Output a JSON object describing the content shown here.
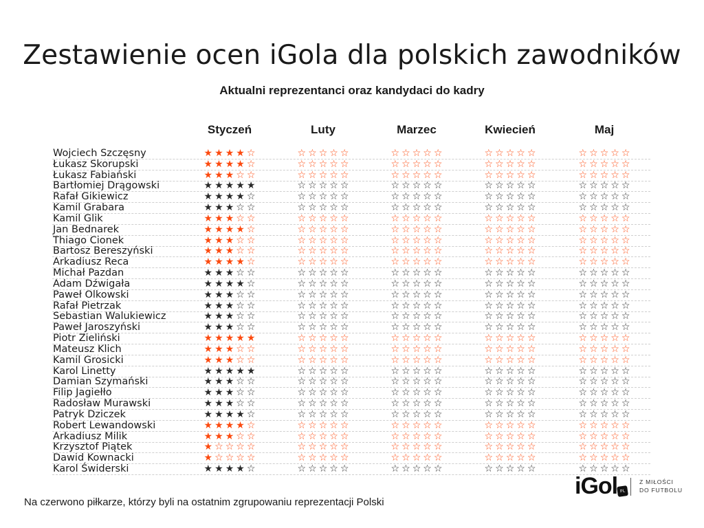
{
  "chart_data": {
    "type": "table",
    "title": "Zestawienie ocen iGola dla polskich zawodników",
    "subtitle": "Aktualni reprezentanci oraz kandydaci do kadry",
    "months": [
      "Styczeń",
      "Luty",
      "Marzec",
      "Kwiecień",
      "Maj"
    ],
    "max_stars": 5,
    "colors": {
      "highlighted": "#fc4a0f",
      "regular": "#2a2a2a"
    },
    "players": [
      {
        "name": "Wojciech Szczęsny",
        "highlighted": true,
        "ratings": [
          4,
          0,
          0,
          0,
          0
        ]
      },
      {
        "name": "Łukasz Skorupski",
        "highlighted": true,
        "ratings": [
          4,
          0,
          0,
          0,
          0
        ]
      },
      {
        "name": "Łukasz Fabiański",
        "highlighted": true,
        "ratings": [
          3,
          0,
          0,
          0,
          0
        ]
      },
      {
        "name": "Bartłomiej Drągowski",
        "highlighted": false,
        "ratings": [
          5,
          0,
          0,
          0,
          0
        ]
      },
      {
        "name": "Rafał Gikiewicz",
        "highlighted": false,
        "ratings": [
          4,
          0,
          0,
          0,
          0
        ]
      },
      {
        "name": "Kamil Grabara",
        "highlighted": false,
        "ratings": [
          3,
          0,
          0,
          0,
          0
        ]
      },
      {
        "name": "Kamil Glik",
        "highlighted": true,
        "ratings": [
          3,
          0,
          0,
          0,
          0
        ]
      },
      {
        "name": "Jan Bednarek",
        "highlighted": true,
        "ratings": [
          4,
          0,
          0,
          0,
          0
        ]
      },
      {
        "name": "Thiago Cionek",
        "highlighted": true,
        "ratings": [
          3,
          0,
          0,
          0,
          0
        ]
      },
      {
        "name": "Bartosz Bereszyński",
        "highlighted": true,
        "ratings": [
          3,
          0,
          0,
          0,
          0
        ]
      },
      {
        "name": "Arkadiusz Reca",
        "highlighted": true,
        "ratings": [
          4,
          0,
          0,
          0,
          0
        ]
      },
      {
        "name": "Michał Pazdan",
        "highlighted": false,
        "ratings": [
          3,
          0,
          0,
          0,
          0
        ]
      },
      {
        "name": "Adam Dźwigała",
        "highlighted": false,
        "ratings": [
          4,
          0,
          0,
          0,
          0
        ]
      },
      {
        "name": "Paweł Olkowski",
        "highlighted": false,
        "ratings": [
          3,
          0,
          0,
          0,
          0
        ]
      },
      {
        "name": "Rafał Pietrzak",
        "highlighted": false,
        "ratings": [
          3,
          0,
          0,
          0,
          0
        ]
      },
      {
        "name": "Sebastian Walukiewicz",
        "highlighted": false,
        "ratings": [
          3,
          0,
          0,
          0,
          0
        ]
      },
      {
        "name": "Paweł Jaroszyński",
        "highlighted": false,
        "ratings": [
          3,
          0,
          0,
          0,
          0
        ]
      },
      {
        "name": "Piotr Zieliński",
        "highlighted": true,
        "ratings": [
          5,
          0,
          0,
          0,
          0
        ]
      },
      {
        "name": "Mateusz Klich",
        "highlighted": true,
        "ratings": [
          3,
          0,
          0,
          0,
          0
        ]
      },
      {
        "name": "Kamil Grosicki",
        "highlighted": true,
        "ratings": [
          3,
          0,
          0,
          0,
          0
        ]
      },
      {
        "name": "Karol Linetty",
        "highlighted": false,
        "ratings": [
          5,
          0,
          0,
          0,
          0
        ]
      },
      {
        "name": "Damian Szymański",
        "highlighted": false,
        "ratings": [
          3,
          0,
          0,
          0,
          0
        ]
      },
      {
        "name": "Filip Jagiełło",
        "highlighted": false,
        "ratings": [
          3,
          0,
          0,
          0,
          0
        ]
      },
      {
        "name": "Radosław Murawski",
        "highlighted": false,
        "ratings": [
          3,
          0,
          0,
          0,
          0
        ]
      },
      {
        "name": "Patryk Dziczek",
        "highlighted": false,
        "ratings": [
          4,
          0,
          0,
          0,
          0
        ]
      },
      {
        "name": "Robert Lewandowski",
        "highlighted": true,
        "ratings": [
          4,
          0,
          0,
          0,
          0
        ]
      },
      {
        "name": "Arkadiusz Milik",
        "highlighted": true,
        "ratings": [
          3,
          0,
          0,
          0,
          0
        ]
      },
      {
        "name": "Krzysztof Piątek",
        "highlighted": true,
        "ratings": [
          1,
          0,
          0,
          0,
          0
        ]
      },
      {
        "name": "Dawid Kownacki",
        "highlighted": true,
        "ratings": [
          1,
          0,
          0,
          0,
          0
        ]
      },
      {
        "name": "Karol Świderski",
        "highlighted": false,
        "ratings": [
          4,
          0,
          0,
          0,
          0
        ]
      }
    ]
  },
  "footnote": "Na czerwono piłkarze, którzy byli na ostatnim zgrupowaniu reprezentacji Polski",
  "logo": {
    "text": "iGol",
    "badge": "PL",
    "tagline_1": "Z MIŁOŚCI",
    "tagline_2": "DO FUTBOLU"
  }
}
